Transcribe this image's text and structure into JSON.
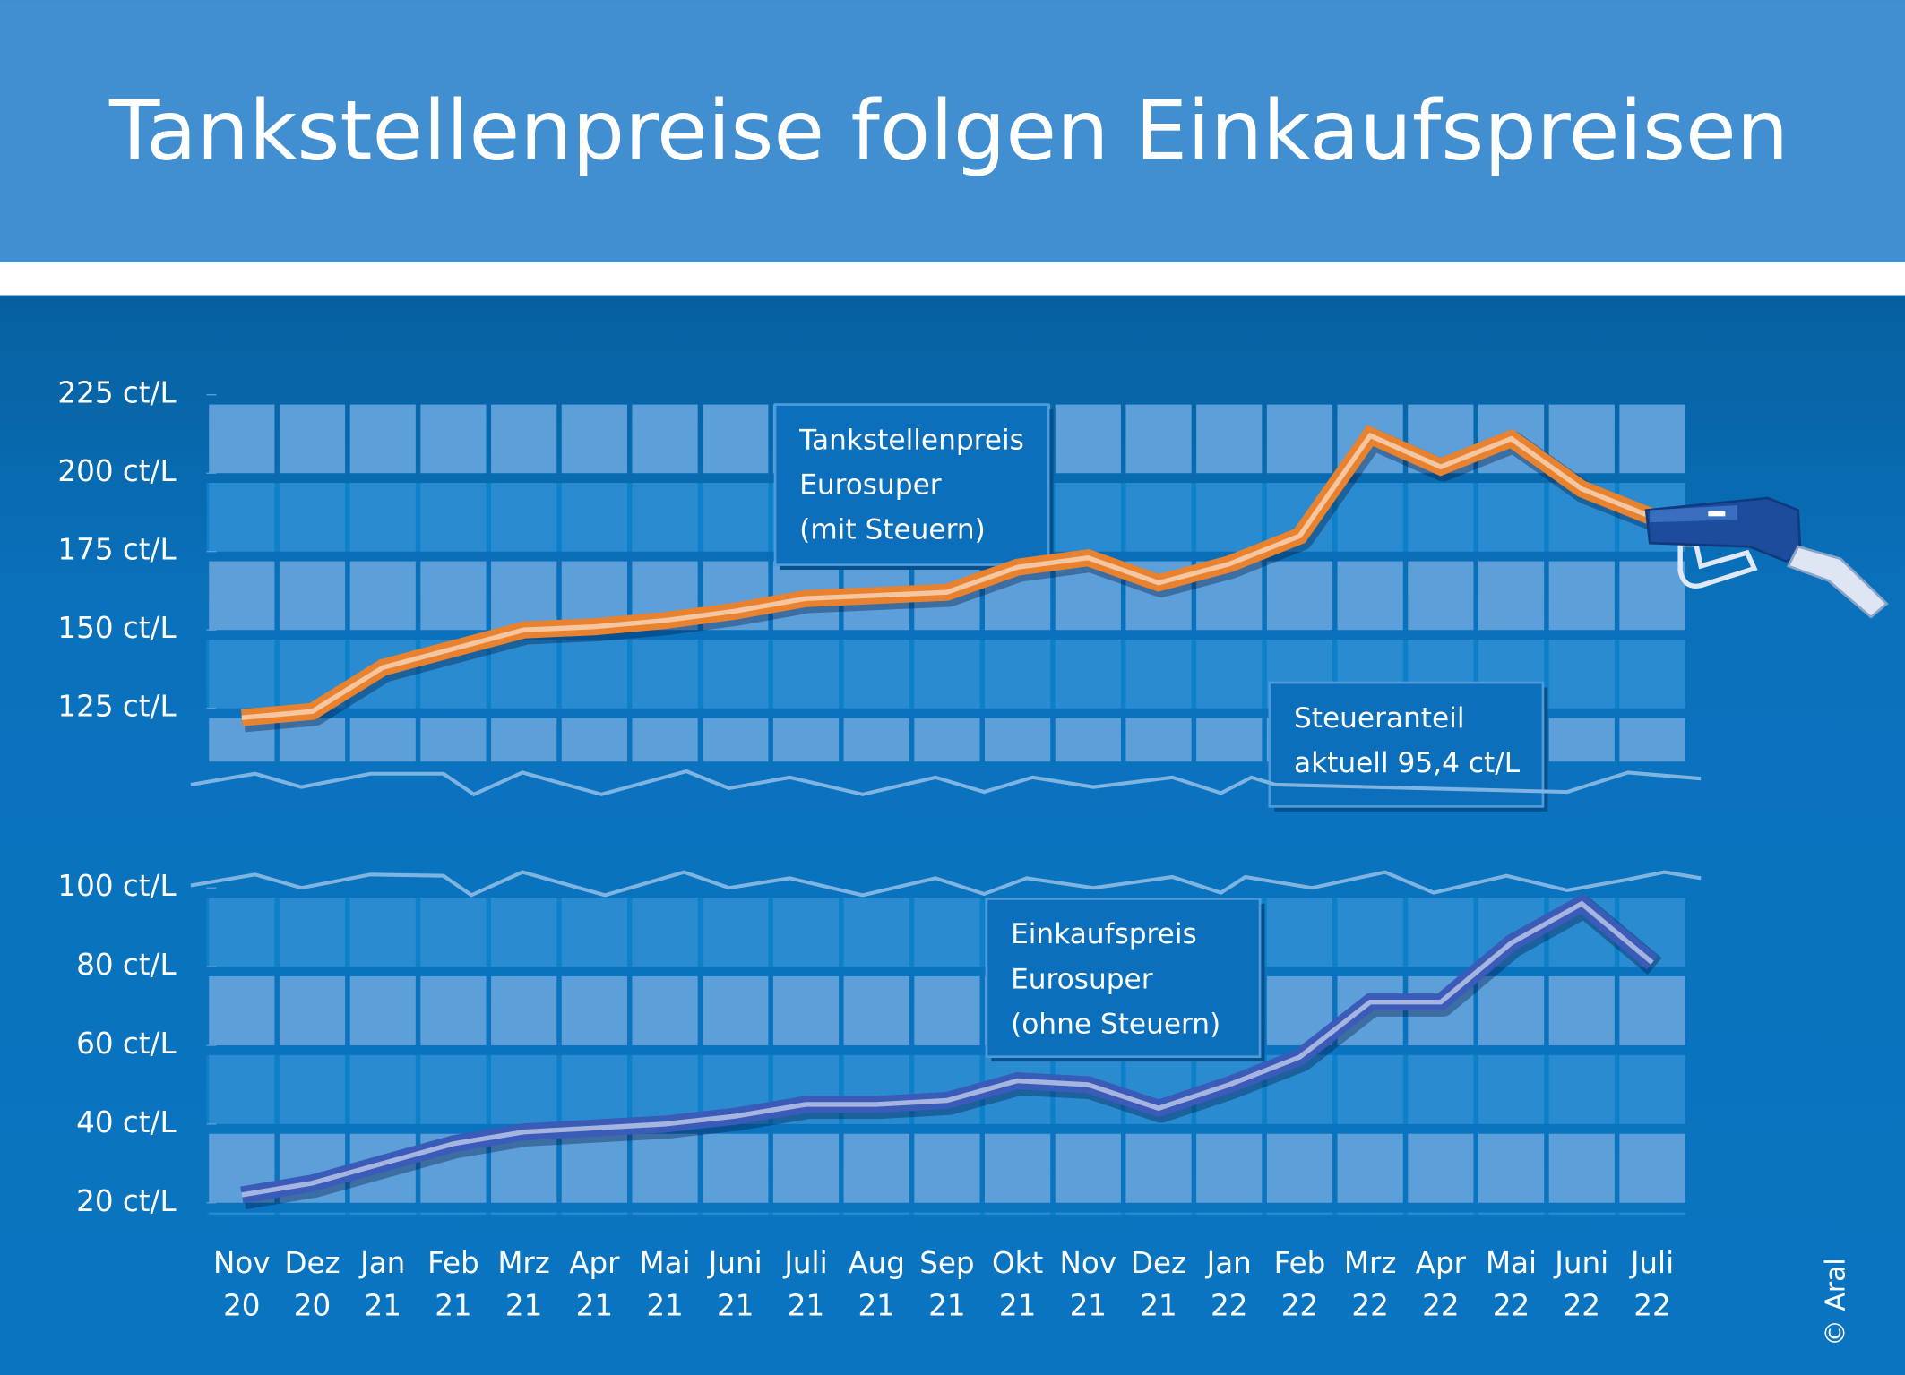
{
  "title": "Tankstellenpreise folgen Einkaufspreisen",
  "credit": "© Aral",
  "chart_data": [
    {
      "type": "line",
      "series": [
        {
          "color": "#e8822e",
          "values": [
            122,
            124,
            138,
            144,
            150,
            151,
            153,
            156,
            160,
            161,
            162,
            170,
            173,
            165,
            171,
            180,
            212,
            202,
            211,
            195,
            186
          ]
        }
      ],
      "ylim": [
        108,
        225
      ],
      "yticks": [
        {
          "value": 125,
          "label": "125 ct/L"
        },
        {
          "value": 150,
          "label": "150 ct/L"
        },
        {
          "value": 175,
          "label": "175 ct/L"
        },
        {
          "value": 200,
          "label": "200 ct/L"
        },
        {
          "value": 225,
          "label": "225 ct/L"
        }
      ],
      "annotations": [
        [
          "Tankstellenpreis",
          "Eurosuper",
          "(mit Steuern)"
        ],
        [
          "Steueranteil",
          "aktuell 95,4 ct/L"
        ]
      ]
    },
    {
      "type": "line",
      "categories": [
        "Nov 20",
        "Dez 20",
        "Jan 21",
        "Feb 21",
        "Mrz 21",
        "Apr 21",
        "Mai 21",
        "Juni 21",
        "Juli 21",
        "Aug 21",
        "Sep 21",
        "Okt 21",
        "Nov 21",
        "Dez 21",
        "Jan 22",
        "Feb 22",
        "Mrz 22",
        "Apr 22",
        "Mai 22",
        "Juni 22",
        "Juli 22"
      ],
      "series": [
        {
          "color": "#3a5bb8",
          "values": [
            22,
            25,
            30,
            35,
            38,
            39,
            40,
            42,
            45,
            45,
            46,
            51,
            50,
            44,
            50,
            57,
            71,
            71,
            86,
            96,
            81
          ]
        }
      ],
      "ylim": [
        17,
        100
      ],
      "yticks": [
        {
          "value": 20,
          "label": "20 ct/L"
        },
        {
          "value": 40,
          "label": "40 ct/L"
        },
        {
          "value": 60,
          "label": "60 ct/L"
        },
        {
          "value": 80,
          "label": "80 ct/L"
        },
        {
          "value": 100,
          "label": "100 ct/L"
        }
      ],
      "annotations": [
        [
          "Einkaufspreis",
          "Eurosuper",
          "(ohne Steuern)"
        ]
      ]
    }
  ]
}
